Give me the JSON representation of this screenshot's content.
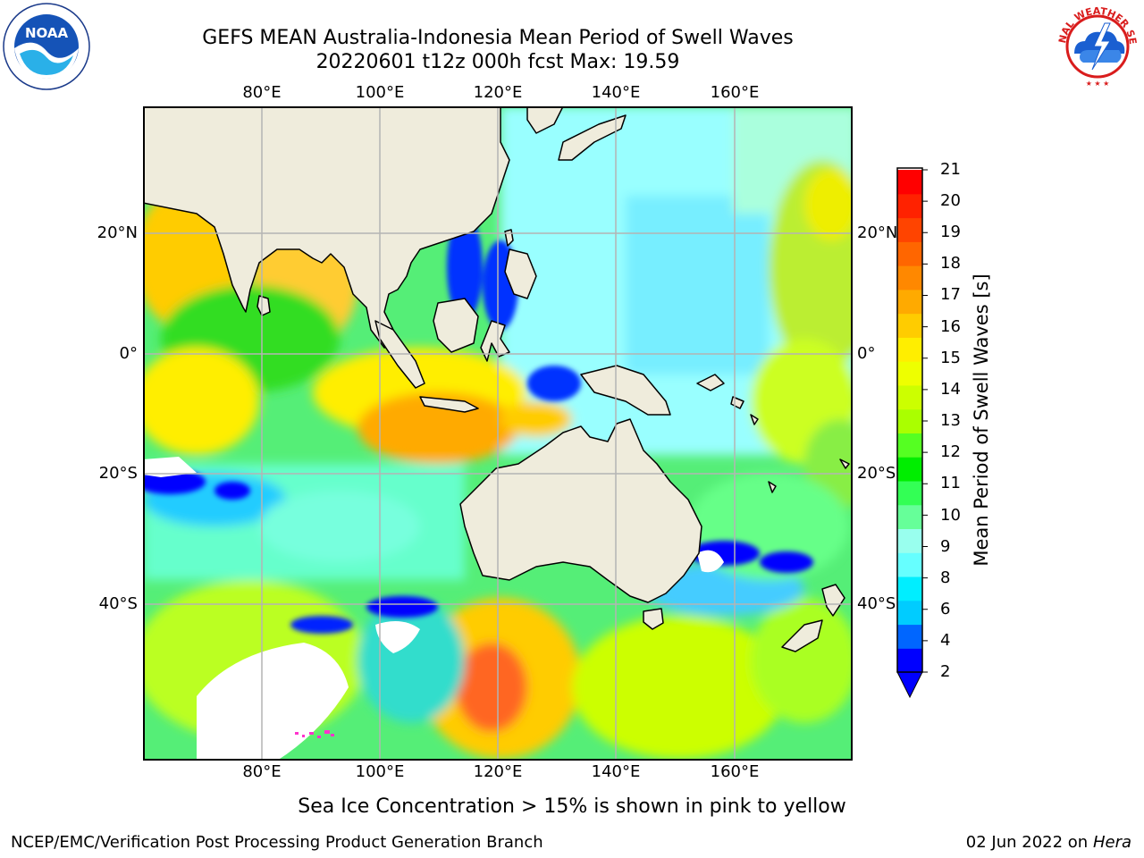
{
  "title": {
    "line1": "GEFS MEAN Australia-Indonesia Mean Period of Swell Waves",
    "line2": "20220601 t12z 000h fcst   Max: 19.59"
  },
  "logos": {
    "left": "NOAA",
    "left_ring": "NATIONAL OCEANIC AND ATMOSPHERIC ADMINISTRATION · U.S. DEPARTMENT OF COMMERCE",
    "right_ring": "NATIONAL WEATHER SERVICE"
  },
  "map": {
    "lon_labels": [
      "80°E",
      "100°E",
      "120°E",
      "140°E",
      "160°E"
    ],
    "lat_labels": [
      "20°N",
      "0°",
      "20°S",
      "40°S"
    ],
    "land_color": "#efecdc",
    "grid_color": "#b4b4b4"
  },
  "colorbar": {
    "title": "Mean Period of Swell Waves [s]",
    "tick_labels": [
      "21",
      "20",
      "19",
      "18",
      "17",
      "16",
      "15",
      "14",
      "13",
      "12",
      "11",
      "10",
      "9",
      "8",
      "6",
      "4",
      "2"
    ],
    "colors": [
      "#0000ff",
      "#0066ff",
      "#00ccff",
      "#00eeff",
      "#66ffff",
      "#99ffee",
      "#66ff99",
      "#33ff55",
      "#00ee00",
      "#55ff22",
      "#aaff00",
      "#ccff00",
      "#eeff00",
      "#ffee00",
      "#ffcc00",
      "#ffaa00",
      "#ff8800",
      "#ff6600",
      "#ff4400",
      "#ff2200",
      "#ff0000"
    ],
    "extend_color": "#0000ff"
  },
  "footer": {
    "note": "Sea Ice Concentration > 15% is shown in pink to yellow",
    "left": "NCEP/EMC/Verification Post Processing Product Generation Branch",
    "date": "02 Jun 2022 on",
    "machine": "Hera"
  }
}
